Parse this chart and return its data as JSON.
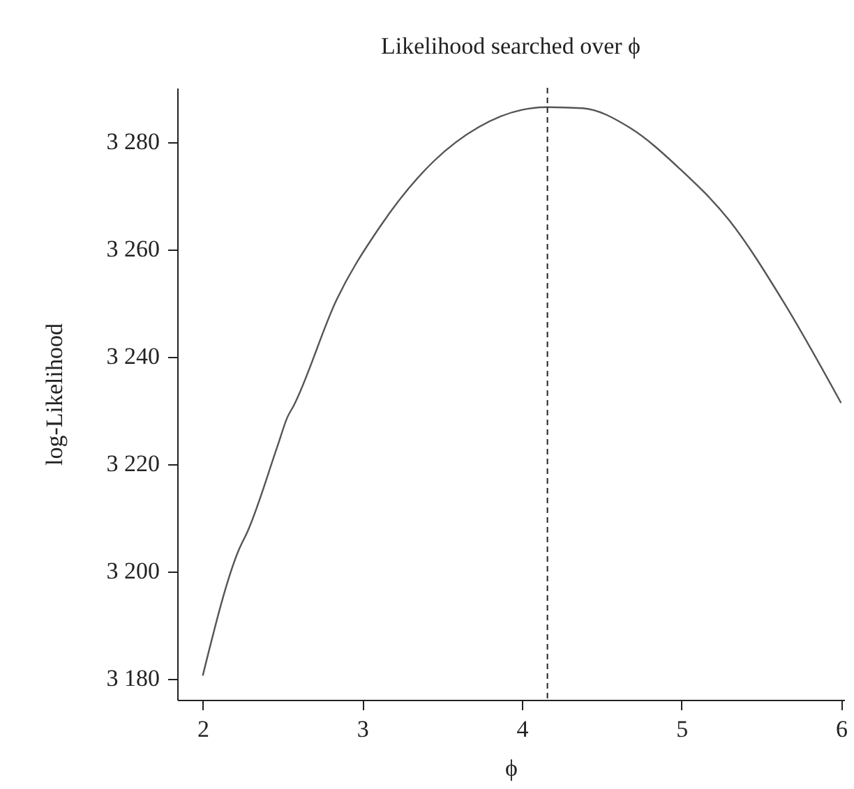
{
  "chart_data": {
    "type": "line",
    "title": "Likelihood searched over ϕ",
    "xlabel": "ϕ",
    "ylabel": "log-Likelihood",
    "x": [
      2,
      2.23,
      2.28,
      2.47,
      2.53,
      2.57,
      2.84,
      3.11,
      3.45,
      3.73,
      4.0,
      4.16,
      4.38,
      4.68,
      4.99,
      5.3,
      5.64,
      6.0
    ],
    "series": [
      {
        "color": "#555555",
        "values": [
          3180.5,
          3204.2,
          3207.3,
          3223.4,
          3228.6,
          3230.8,
          3250.6,
          3264.1,
          3276.4,
          3282.7,
          3285.9,
          3286.4,
          3286.2,
          3282.5,
          3274.9,
          3265.3,
          3250.1,
          3231.3
        ]
      }
    ],
    "xlim": [
      1.84,
      6.02
    ],
    "ylim": [
      3176,
      3290
    ],
    "xticks": [
      2,
      3,
      4,
      5,
      6
    ],
    "yticks": [
      {
        "value": 3180,
        "label": "3 180"
      },
      {
        "value": 3200,
        "label": "3 200"
      },
      {
        "value": 3220,
        "label": "3 220"
      },
      {
        "value": 3240,
        "label": "3 240"
      },
      {
        "value": 3260,
        "label": "3 260"
      },
      {
        "value": 3280,
        "label": "3 280"
      }
    ],
    "ref_lines": [
      {
        "axis": "x",
        "value": 4.16,
        "color": "#222222",
        "line_style": "dashed"
      }
    ],
    "grid": false,
    "marker": "none",
    "line_style": "solid"
  }
}
